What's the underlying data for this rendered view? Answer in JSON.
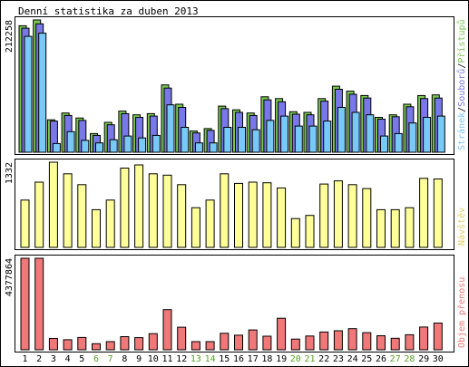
{
  "chart_data": {
    "type": "bar",
    "title": "Denní statistika za duben 2013",
    "days": [
      "1",
      "2",
      "3",
      "4",
      "5",
      "6",
      "7",
      "8",
      "9",
      "10",
      "11",
      "12",
      "13",
      "14",
      "15",
      "16",
      "17",
      "18",
      "19",
      "20",
      "21",
      "22",
      "23",
      "24",
      "25",
      "26",
      "27",
      "28",
      "29",
      "30"
    ],
    "weekend_days": [
      "6",
      "7",
      "13",
      "14",
      "20",
      "21",
      "27",
      "28"
    ],
    "colors": {
      "pristupu": "#78c850",
      "souboru": "#7878e8",
      "stranek": "#78c8f8",
      "navstev": "#ffff99",
      "objem": "#f07878",
      "weekday_label": "#000000",
      "weekend_label": "#58a028"
    },
    "panels": [
      {
        "id": "hits",
        "ymax_label": "212258",
        "ymax": 212258,
        "side_labels": [
          {
            "text": "Stránek",
            "color": "#78c8f8"
          },
          {
            "text": "/",
            "color": "#000000"
          },
          {
            "text": "Souborů",
            "color": "#7878e8"
          },
          {
            "text": "/",
            "color": "#000000"
          },
          {
            "text": "Přístupů",
            "color": "#78c850"
          }
        ],
        "series": [
          {
            "key": "pristupu",
            "values": [
              203000,
              212258,
              52000,
              63000,
              55000,
              30000,
              48000,
              66000,
              60000,
              62000,
              108000,
              77000,
              34000,
              38000,
              74000,
              68000,
              63000,
              89000,
              86000,
              65000,
              64000,
              86000,
              106000,
              98000,
              91000,
              56000,
              60000,
              77000,
              91000,
              92000
            ]
          },
          {
            "key": "souboru",
            "values": [
              199000,
              206000,
              50000,
              59000,
              51000,
              27000,
              44000,
              62000,
              56000,
              58000,
              103000,
              72000,
              31000,
              35000,
              70000,
              64000,
              59000,
              84000,
              81000,
              61000,
              60000,
              82000,
              101000,
              93000,
              87000,
              53000,
              57000,
              73000,
              86000,
              87000
            ]
          },
          {
            "key": "stranek",
            "values": [
              186000,
              191000,
              14000,
              33000,
              19000,
              15000,
              20000,
              26000,
              23000,
              27000,
              76000,
              40000,
              15000,
              15000,
              40000,
              40000,
              36000,
              51000,
              58000,
              42000,
              42000,
              50000,
              72000,
              64000,
              60000,
              26000,
              30000,
              47000,
              56000,
              58000
            ]
          }
        ]
      },
      {
        "id": "visits",
        "ymax_label": "1332",
        "ymax": 1332,
        "side_labels": [
          {
            "text": "Návštěv",
            "color": "#e0d060"
          }
        ],
        "series": [
          {
            "key": "navstev",
            "values": [
              740,
              1020,
              1332,
              1150,
              980,
              590,
              740,
              1240,
              1290,
              1150,
              1130,
              980,
              620,
              740,
              1150,
              1000,
              1020,
              1010,
              930,
              450,
              500,
              990,
              1040,
              980,
              920,
              590,
              590,
              620,
              1080,
              1070
            ]
          }
        ]
      },
      {
        "id": "traffic",
        "ymax_label": "4377864",
        "ymax": 4377864,
        "side_labels": [
          {
            "text": "Objem přenosu",
            "color": "#f07878"
          }
        ],
        "series": [
          {
            "key": "objem",
            "values": [
              4377864,
              4377864,
              540000,
              480000,
              590000,
              290000,
              390000,
              630000,
              580000,
              770000,
              1920000,
              1080000,
              390000,
              390000,
              790000,
              700000,
              950000,
              650000,
              1510000,
              510000,
              660000,
              850000,
              910000,
              1010000,
              820000,
              670000,
              550000,
              720000,
              1090000,
              1280000
            ]
          }
        ]
      }
    ]
  }
}
